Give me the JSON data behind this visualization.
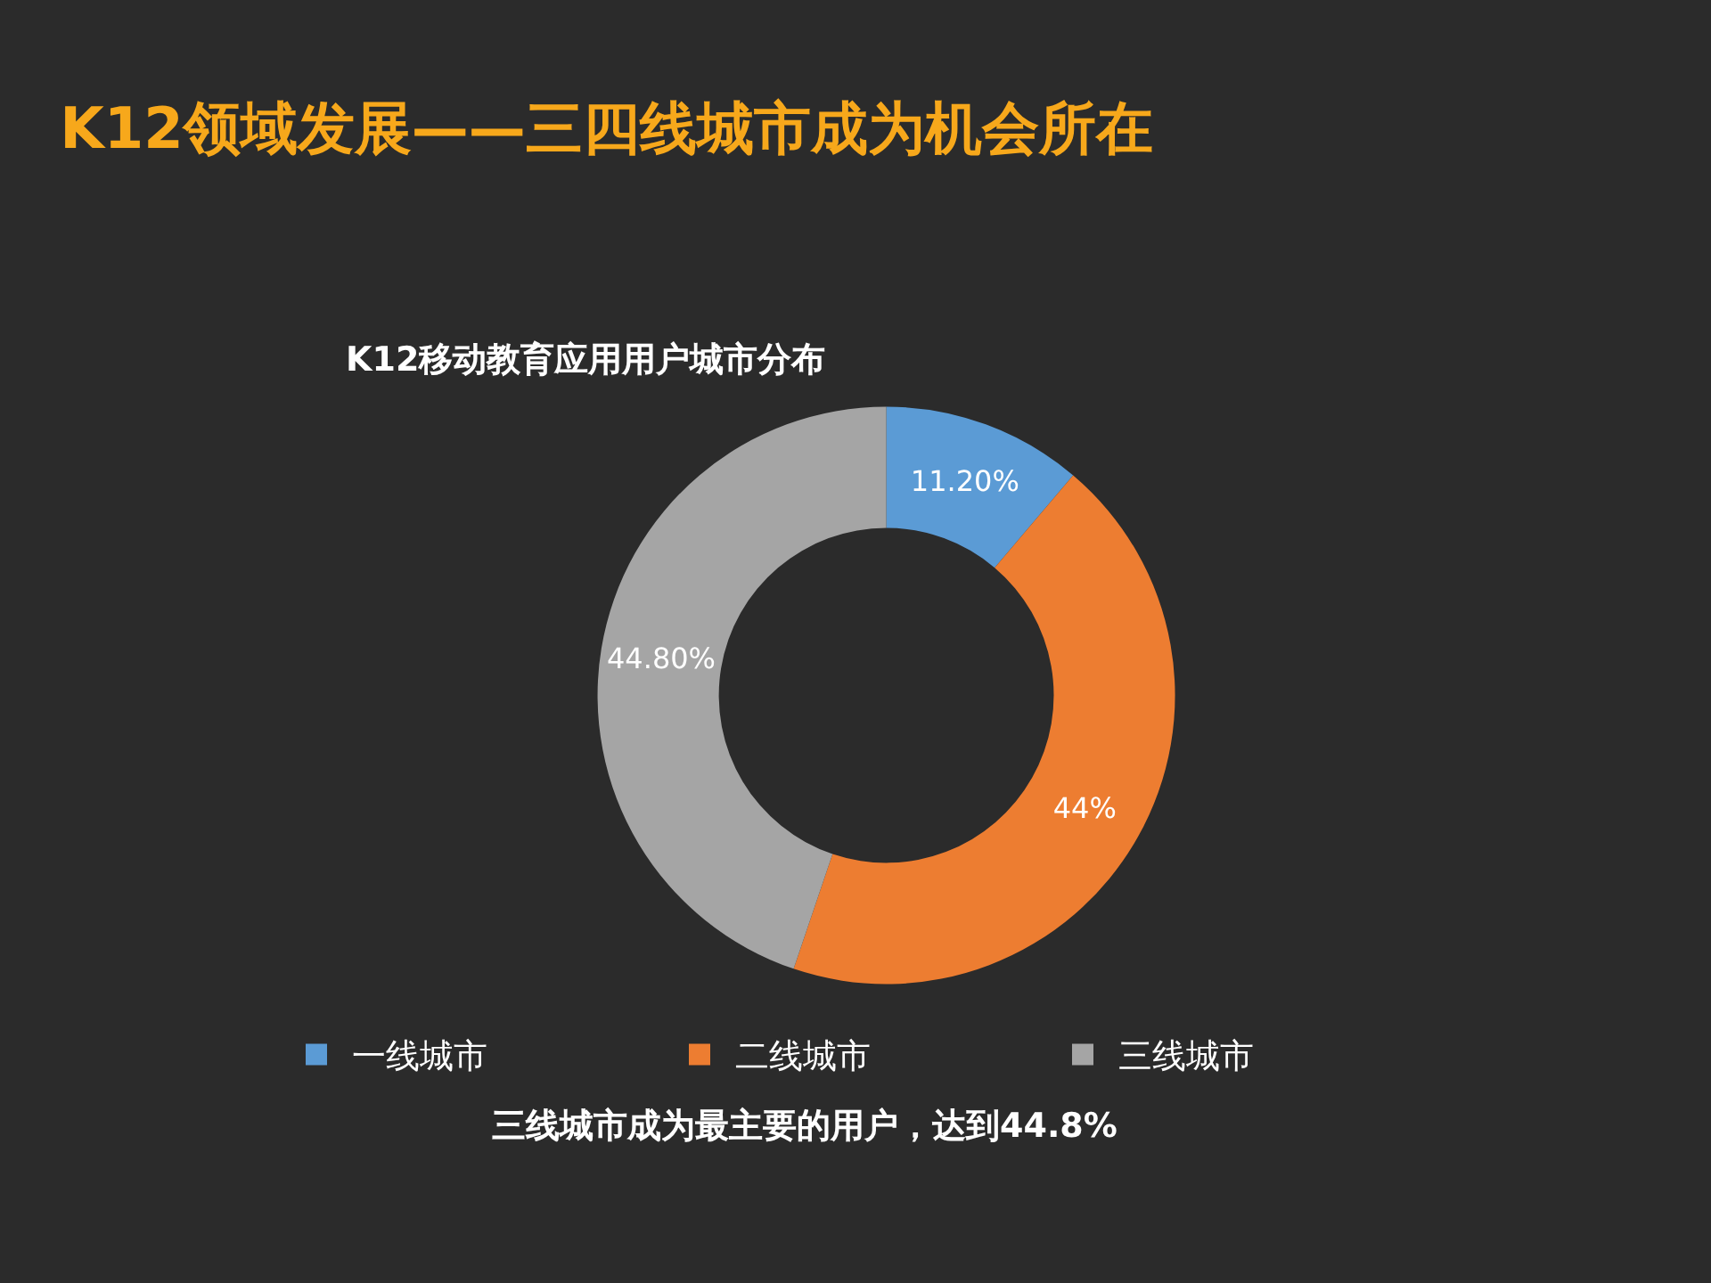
{
  "chart_data": {
    "type": "donut",
    "title": "K12领域发展——三四线城市成为机会所在",
    "subtitle": "K12移动教育应用用户城市分布",
    "categories": [
      "一线城市",
      "二线城市",
      "三线城市"
    ],
    "values": [
      11.2,
      44,
      44.8
    ],
    "value_labels": [
      "11.20%",
      "44%",
      "44.80%"
    ],
    "colors": [
      "#5b9bd5",
      "#ed7d31",
      "#a5a5a5"
    ],
    "legend": "bottom",
    "annotations": [
      "三线城市成为最主要的用户，达到44.8%"
    ]
  }
}
